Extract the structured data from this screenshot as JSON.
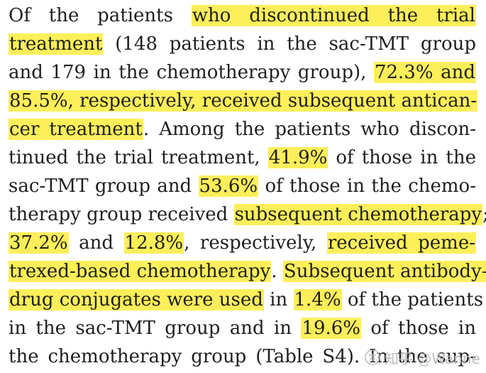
{
  "lines": [
    {
      "segments": [
        {
          "text": "Of the patients ",
          "hl": false
        },
        {
          "text": "who discontinued the trial",
          "hl": true
        }
      ]
    },
    {
      "segments": [
        {
          "text": "treatment",
          "hl": true
        },
        {
          "text": " (148 patients in the sac-TMT group",
          "hl": false
        }
      ]
    },
    {
      "segments": [
        {
          "text": "and 179 in the chemotherapy group), ",
          "hl": false
        },
        {
          "text": "72.3% and",
          "hl": true
        }
      ]
    },
    {
      "segments": [
        {
          "text": "85.5%, respectively, received subsequent antican-",
          "hl": true
        }
      ]
    },
    {
      "segments": [
        {
          "text": "cer treatment",
          "hl": true
        },
        {
          "text": ". Among the patients who discon-",
          "hl": false
        }
      ]
    },
    {
      "segments": [
        {
          "text": "tinued the trial treatment, ",
          "hl": false
        },
        {
          "text": "41.9%",
          "hl": true
        },
        {
          "text": " of those in the",
          "hl": false
        }
      ]
    },
    {
      "segments": [
        {
          "text": "sac-TMT group and ",
          "hl": false
        },
        {
          "text": "53.6%",
          "hl": true
        },
        {
          "text": " of those in the chemo-",
          "hl": false
        }
      ]
    },
    {
      "segments": [
        {
          "text": "therapy group received ",
          "hl": false
        },
        {
          "text": "subsequent chemotherapy",
          "hl": true
        },
        {
          "text": ";",
          "hl": false
        }
      ]
    },
    {
      "segments": [
        {
          "text": "37.2%",
          "hl": true
        },
        {
          "text": " and ",
          "hl": false
        },
        {
          "text": "12.8%",
          "hl": true
        },
        {
          "text": ", respectively, ",
          "hl": false
        },
        {
          "text": "received peme-",
          "hl": true
        }
      ]
    },
    {
      "segments": [
        {
          "text": "trexed-based chemotherapy",
          "hl": true
        },
        {
          "text": ". ",
          "hl": false
        },
        {
          "text": "Subsequent antibody–",
          "hl": true
        }
      ]
    },
    {
      "segments": [
        {
          "text": "drug conjugates were used",
          "hl": true
        },
        {
          "text": " in ",
          "hl": false
        },
        {
          "text": "1.4%",
          "hl": true
        },
        {
          "text": " of the patients",
          "hl": false
        }
      ]
    },
    {
      "segments": [
        {
          "text": "in the sac-TMT group and in ",
          "hl": false
        },
        {
          "text": "19.6%",
          "hl": true
        },
        {
          "text": " of those in",
          "hl": false
        }
      ]
    },
    {
      "segments": [
        {
          "text": "the chemotherapy group (Table S4). In the sup-",
          "hl": false
        }
      ]
    }
  ],
  "watermark": {
    "icon": "zhihu-logo-icon",
    "text": "知乎 @Wanne"
  },
  "colors": {
    "highlight": "#fcef5a",
    "text": "#1f1f1f",
    "watermark": "#b8b8b8"
  }
}
